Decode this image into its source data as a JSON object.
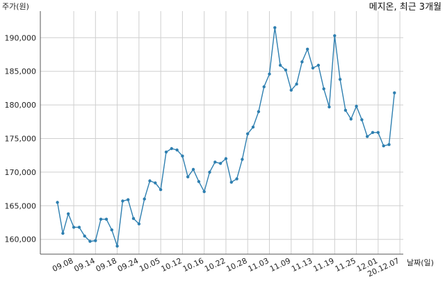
{
  "chart_data": {
    "type": "line",
    "title": "메지온, 최근 3개월",
    "ylabel": "주가(원)",
    "xlabel": "날짜(일)",
    "ylim": [
      157500,
      193000
    ],
    "yticks": [
      160000,
      165000,
      170000,
      175000,
      180000,
      185000,
      190000
    ],
    "ytick_labels": [
      "160,000",
      "165,000",
      "170,000",
      "175,000",
      "180,000",
      "185,000",
      "190,000"
    ],
    "xtick_labels": [
      "09.08",
      "09.14",
      "09.18",
      "09.24",
      "10.05",
      "10.12",
      "10.16",
      "10.22",
      "10.28",
      "11.03",
      "11.09",
      "11.13",
      "11.19",
      "11.25",
      "12.01",
      "20.12.07"
    ],
    "xtick_index": [
      3,
      7,
      11,
      15,
      19,
      23,
      27,
      31,
      35,
      39,
      43,
      47,
      51,
      55,
      59,
      63
    ],
    "grid": true,
    "color": "#2e7fb0",
    "series": [
      {
        "values": [
          165500,
          160900,
          163800,
          161800,
          161800,
          160500,
          159700,
          159800,
          163000,
          163000,
          161400,
          159000,
          165700,
          165900,
          163100,
          162300,
          166000,
          168700,
          168400,
          167400,
          173000,
          173500,
          173300,
          172400,
          169300,
          170400,
          168600,
          167100,
          170000,
          171500,
          171300,
          172000,
          168500,
          169000,
          171900,
          175700,
          176700,
          179000,
          182700,
          184600,
          191500,
          185900,
          185200,
          182200,
          183100,
          186400,
          188300,
          185500,
          185900,
          182400,
          179700,
          190300,
          183800,
          179200,
          177900,
          179800,
          177800,
          175300,
          175900,
          175900,
          173900,
          174100,
          181800
        ]
      }
    ]
  }
}
